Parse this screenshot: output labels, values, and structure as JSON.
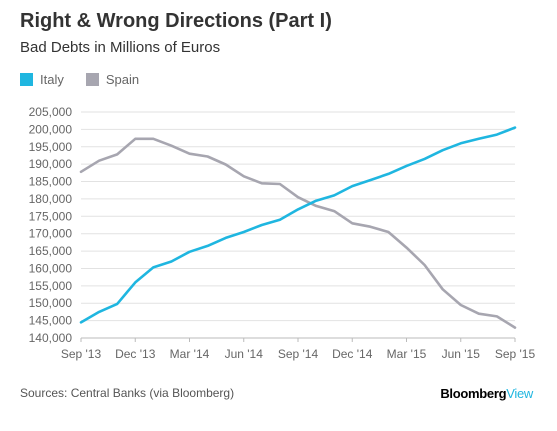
{
  "chart_data": {
    "type": "line",
    "title": "Right & Wrong Directions (Part I)",
    "subtitle": "Bad Debts in Millions of Euros",
    "x": [
      "Sep '13",
      "Oct '13",
      "Nov '13",
      "Dec '13",
      "Jan '14",
      "Feb '14",
      "Mar '14",
      "Apr '14",
      "May '14",
      "Jun '14",
      "Jul '14",
      "Aug '14",
      "Sep '14",
      "Oct '14",
      "Nov '14",
      "Dec '14",
      "Jan '15",
      "Feb '15",
      "Mar '15",
      "Apr '15",
      "May '15",
      "Jun '15",
      "Jul '15",
      "Aug '15",
      "Sep '15"
    ],
    "x_tick_labels": [
      "Sep '13",
      "Dec '13",
      "Mar '14",
      "Jun '14",
      "Sep '14",
      "Dec '14",
      "Mar '15",
      "Jun '15",
      "Sep '15"
    ],
    "series": [
      {
        "name": "Italy",
        "color": "#1fb6e0",
        "values": [
          144500,
          147500,
          149800,
          156000,
          160300,
          162000,
          164800,
          166500,
          168800,
          170500,
          172500,
          174000,
          177000,
          179500,
          181000,
          183700,
          185400,
          187200,
          189500,
          191500,
          194000,
          196000,
          197300,
          198500,
          200500
        ]
      },
      {
        "name": "Spain",
        "color": "#a7a6b0",
        "values": [
          187800,
          191000,
          192800,
          197300,
          197300,
          195300,
          193000,
          192200,
          189900,
          186500,
          184500,
          184300,
          180500,
          178000,
          176500,
          173000,
          172000,
          170500,
          166000,
          161000,
          154000,
          149500,
          147000,
          146200,
          143000
        ]
      }
    ],
    "y_ticks": [
      140000,
      145000,
      150000,
      155000,
      160000,
      165000,
      170000,
      175000,
      180000,
      185000,
      190000,
      195000,
      200000,
      205000
    ],
    "y_tick_labels": [
      "140,000",
      "145,000",
      "150,000",
      "155,000",
      "160,000",
      "165,000",
      "170,000",
      "175,000",
      "180,000",
      "185,000",
      "190,000",
      "195,000",
      "200,000",
      "205,000"
    ],
    "ylim": [
      140000,
      205000
    ],
    "grid": true,
    "legend": "top-left",
    "xlabel": "",
    "ylabel": ""
  },
  "source": "Sources: Central Banks (via Bloomberg)",
  "brand": {
    "part1": "Bloomberg",
    "part2": "View"
  }
}
